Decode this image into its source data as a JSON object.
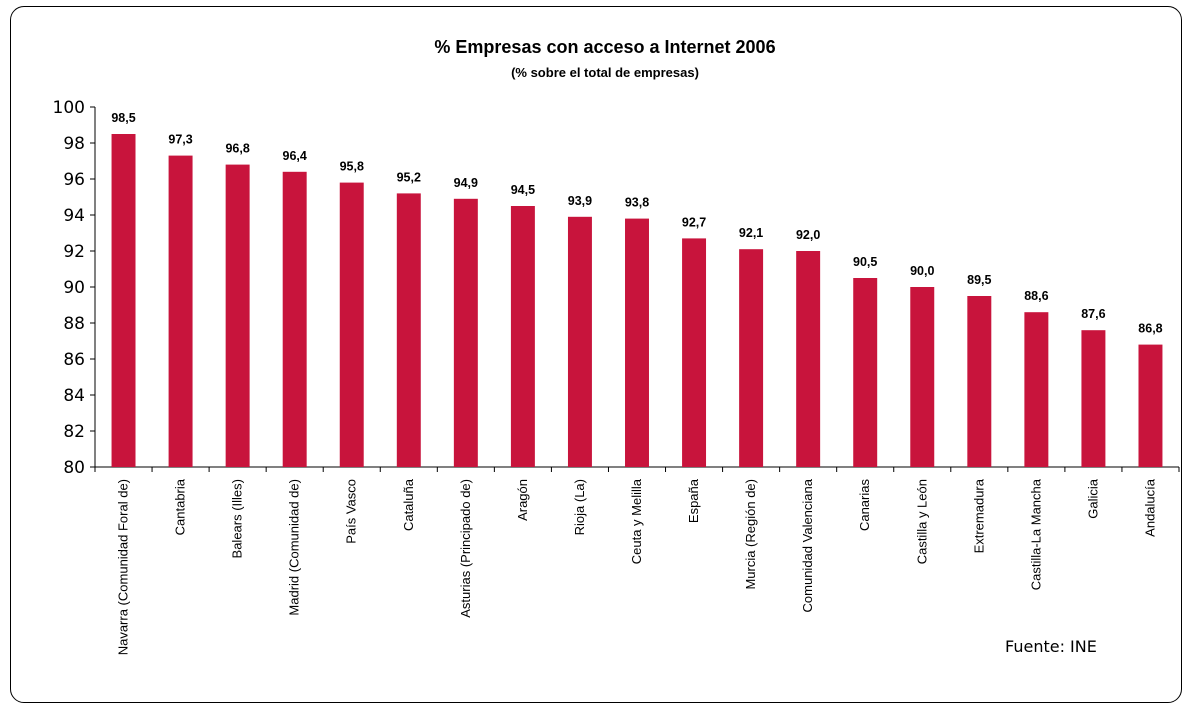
{
  "chart_data": {
    "type": "bar",
    "title": "% Empresas con acceso a Internet  2006",
    "subtitle": "(% sobre el total de empresas)",
    "source": "Fuente: INE",
    "ylim": [
      80,
      100
    ],
    "yticks": [
      80,
      82,
      84,
      86,
      88,
      90,
      92,
      94,
      96,
      98,
      100
    ],
    "categories": [
      "Navarra (Comunidad Foral de)",
      "Cantabria",
      "Balears (Illes)",
      "Madrid (Comunidad de)",
      "País Vasco",
      "Cataluña",
      "Asturias (Principado de)",
      "Aragón",
      "Rioja (La)",
      "Ceuta y Melilla",
      "España",
      "Murcia (Región de)",
      "Comunidad Valenciana",
      "Canarias",
      "Castilla y León",
      "Extremadura",
      "Castilla-La Mancha",
      "Galicia",
      "Andalucía"
    ],
    "values": [
      98.5,
      97.3,
      96.8,
      96.4,
      95.8,
      95.2,
      94.9,
      94.5,
      93.9,
      93.8,
      92.7,
      92.1,
      92.0,
      90.5,
      90.0,
      89.5,
      88.6,
      87.6,
      86.8
    ],
    "value_labels": [
      "98,5",
      "97,3",
      "96,8",
      "96,4",
      "95,8",
      "95,2",
      "94,9",
      "94,5",
      "93,9",
      "93,8",
      "92,7",
      "92,1",
      "92,0",
      "90,5",
      "90,0",
      "89,5",
      "88,6",
      "87,6",
      "86,8"
    ],
    "bar_color": "#c8143c",
    "grid": false,
    "legend": "none"
  }
}
